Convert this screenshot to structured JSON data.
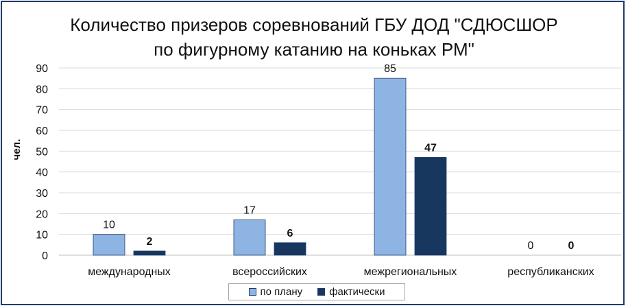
{
  "chart_data": {
    "type": "bar",
    "title_lines": [
      "Количество призеров соревнований ГБУ ДОД \"СДЮСШОР",
      "по фигурному катанию на коньках РМ\""
    ],
    "ylabel": "чел.",
    "xlabel": "",
    "ylim": [
      0,
      90
    ],
    "yticks": [
      0,
      10,
      20,
      30,
      40,
      50,
      60,
      70,
      80,
      90
    ],
    "grid": true,
    "legend_position": "bottom",
    "categories": [
      "международных",
      "всероссийских",
      "межрегиональных",
      "республиканских"
    ],
    "series": [
      {
        "name": "по плану",
        "values": [
          10,
          17,
          85,
          0
        ],
        "color": "#8eb4e3",
        "label_bold": false
      },
      {
        "name": "фактически",
        "values": [
          2,
          6,
          47,
          0
        ],
        "color": "#17375e",
        "label_bold": true
      }
    ]
  }
}
